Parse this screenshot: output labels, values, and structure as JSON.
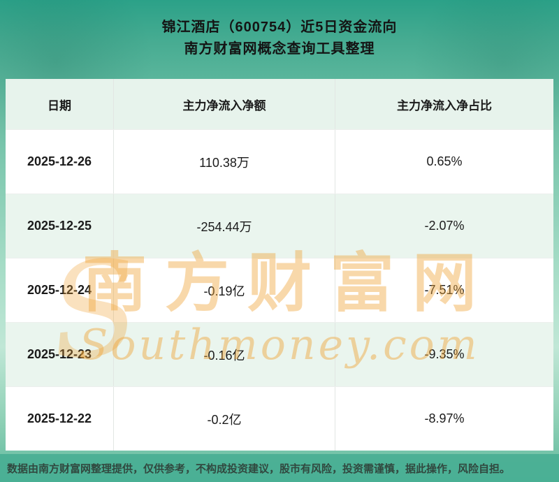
{
  "page": {
    "title": "锦江酒店（600754）近5日资金流向",
    "subtitle": "南方财富网概念查询工具整理",
    "footer_disclaimer": "数据由南方财富网整理提供，仅供参考，不构成投资建议，股市有风险，投资需谨慎，据此操作，风险自担。"
  },
  "watermark": {
    "swoosh": "S",
    "cn": "南方财富网",
    "en": "Southmoney.com"
  },
  "chart_data": {
    "type": "table",
    "title": "锦江酒店（600754）近5日资金流向",
    "subtitle": "南方财富网概念查询工具整理",
    "columns": [
      "日期",
      "主力净流入净额",
      "主力净流入净占比"
    ],
    "rows": [
      [
        "2025-12-26",
        "110.38万",
        "0.65%"
      ],
      [
        "2025-12-25",
        "-254.44万",
        "-2.07%"
      ],
      [
        "2025-12-24",
        "-0.19亿",
        "-7.51%"
      ],
      [
        "2025-12-23",
        "-0.16亿",
        "-9.35%"
      ],
      [
        "2025-12-22",
        "-0.2亿",
        "-8.97%"
      ]
    ]
  },
  "colors": {
    "background_teal": "#2ba188",
    "background_light": "#c0e7d6",
    "header_row_green": "#e7f3ec",
    "alt_row_green": "#eaf5ee",
    "watermark_orange": "#f0a437",
    "footer_band_teal": "#49af94",
    "text_dark": "#1b1b1b"
  }
}
